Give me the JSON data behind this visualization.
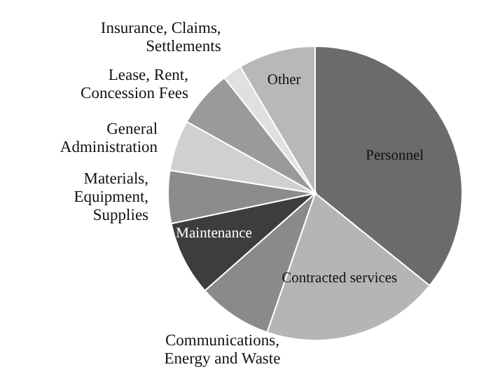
{
  "chart_data": {
    "type": "pie",
    "categories": [
      "Personnel",
      "Contracted services",
      "Communications, Energy and Waste",
      "Maintenance",
      "Materials, Equipment, Supplies",
      "General Administration",
      "Lease, Rent, Concession Fees",
      "Insurance, Claims, Settlements",
      "Other"
    ],
    "values": [
      35.8,
      19.5,
      8.2,
      8.2,
      5.8,
      5.6,
      6.3,
      2.1,
      8.5
    ],
    "colors": [
      "#6b6b6b",
      "#b5b5b5",
      "#8a8a8a",
      "#3d3d3d",
      "#8c8c8c",
      "#d0d0d0",
      "#9a9a9a",
      "#e0e0e0",
      "#b8b8b8"
    ]
  }
}
